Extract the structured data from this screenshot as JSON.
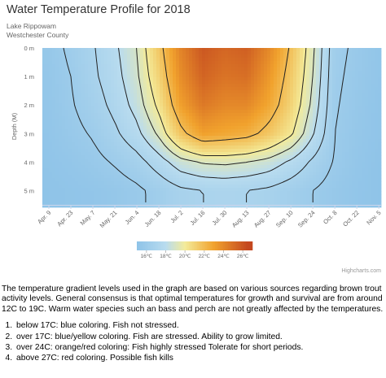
{
  "chart_data": {
    "type": "heatmap",
    "title": "Water Temperature Profile for 2018",
    "subtitle_lines": [
      "Lake Rippowam",
      "Westchester County"
    ],
    "ylabel": "Depth (M)",
    "xlabel": "",
    "x_categories": [
      "Apr. 9",
      "Apr. 23",
      "May. 7",
      "May. 21",
      "Jun. 4",
      "Jun. 18",
      "Jul. 2",
      "Jul. 16",
      "Jul. 30",
      "Aug. 13",
      "Aug. 27",
      "Sep. 10",
      "Sep. 24",
      "Oct. 8",
      "Oct. 22",
      "Nov. 5"
    ],
    "y_ticks": [
      "0 m",
      "1 m",
      "2 m",
      "3 m",
      "4 m",
      "5 m"
    ],
    "y_values_m": [
      0,
      1,
      2,
      3,
      4,
      5
    ],
    "ylim": [
      0,
      5.5
    ],
    "legend": {
      "ticks": [
        "16℃",
        "18℃",
        "20℃",
        "22℃",
        "24℃",
        "26℃"
      ],
      "min": 15,
      "max": 27,
      "placement": "bottom"
    },
    "colors": {
      "cold": "#8ec3e8",
      "mid": "#f3eb9a",
      "warm": "#f1a22d",
      "hot": "#c4481f"
    },
    "temperatures_c_by_depth": {
      "0": [
        15.6,
        16.2,
        16.9,
        17.8,
        19.0,
        21.5,
        24.2,
        25.9,
        25.3,
        25.6,
        24.0,
        21.8,
        19.2,
        16.3,
        15.8,
        15.3
      ],
      "1": [
        15.5,
        16.0,
        16.8,
        17.6,
        18.8,
        21.0,
        23.8,
        25.4,
        24.8,
        25.0,
        23.4,
        21.4,
        19.0,
        16.2,
        15.7,
        15.3
      ],
      "2": [
        15.4,
        15.9,
        16.5,
        17.3,
        18.4,
        20.3,
        23.1,
        24.6,
        24.0,
        24.0,
        22.8,
        21.0,
        18.7,
        16.1,
        15.6,
        15.2
      ],
      "3": [
        15.3,
        15.7,
        16.1,
        16.8,
        17.7,
        19.2,
        21.6,
        23.1,
        22.8,
        22.5,
        21.5,
        20.2,
        18.1,
        16.0,
        15.5,
        15.2
      ],
      "4": [
        15.2,
        15.4,
        15.7,
        16.1,
        16.6,
        17.5,
        18.6,
        19.1,
        19.2,
        19.0,
        18.6,
        17.8,
        16.8,
        15.9,
        15.4,
        15.1
      ],
      "5": [
        15.1,
        15.2,
        15.3,
        15.5,
        15.8,
        16.3,
        16.8,
        17.0,
        17.1,
        17.0,
        16.8,
        16.4,
        16.0,
        15.6,
        15.3,
        15.1
      ]
    }
  },
  "credits": "Highcharts.com",
  "description": {
    "intro": "The temperature gradient levels used in the graph are based on various sources regarding brown trout activity levels. General consensus is that optimal temperatures for growth and survival are from around 12C to 19C. Warm water species such an bass and perch are not greatly affected by the temperatures.",
    "items": [
      "below 17C: blue coloring. Fish not stressed.",
      "over 17C: blue/yellow coloring. Fish are stressed. Ability to grow limited.",
      "over 24C: orange/red coloring: Fish highly stressed Tolerate for short periods.",
      "above 27C: red coloring. Possible fish kills"
    ]
  }
}
